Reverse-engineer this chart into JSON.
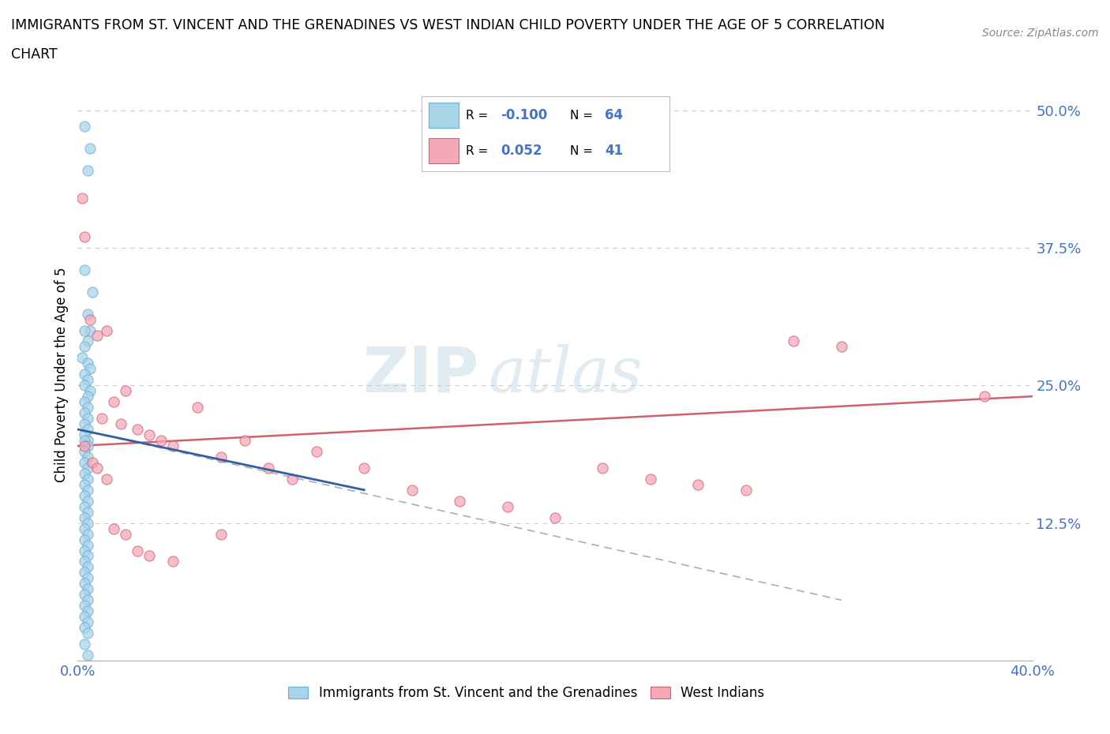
{
  "title_line1": "IMMIGRANTS FROM ST. VINCENT AND THE GRENADINES VS WEST INDIAN CHILD POVERTY UNDER THE AGE OF 5 CORRELATION",
  "title_line2": "CHART",
  "source": "Source: ZipAtlas.com",
  "ylabel": "Child Poverty Under the Age of 5",
  "xlim": [
    0.0,
    0.4
  ],
  "ylim": [
    0.0,
    0.52
  ],
  "ytick_labels": [
    "",
    "12.5%",
    "25.0%",
    "37.5%",
    "50.0%"
  ],
  "blue_R": -0.1,
  "blue_N": 64,
  "pink_R": 0.052,
  "pink_N": 41,
  "blue_color": "#a8d4e8",
  "blue_edge": "#6baed6",
  "pink_color": "#f4a8b8",
  "pink_edge": "#d06070",
  "legend1_label": "Immigrants from St. Vincent and the Grenadines",
  "legend2_label": "West Indians",
  "watermark_zip": "ZIP",
  "watermark_atlas": "atlas",
  "blue_scatter_x": [
    0.003,
    0.005,
    0.004,
    0.003,
    0.006,
    0.004,
    0.005,
    0.003,
    0.004,
    0.003,
    0.002,
    0.004,
    0.005,
    0.003,
    0.004,
    0.003,
    0.005,
    0.004,
    0.003,
    0.004,
    0.003,
    0.004,
    0.003,
    0.004,
    0.003,
    0.004,
    0.003,
    0.004,
    0.003,
    0.004,
    0.003,
    0.004,
    0.003,
    0.004,
    0.003,
    0.004,
    0.003,
    0.004,
    0.003,
    0.004,
    0.003,
    0.004,
    0.003,
    0.004,
    0.003,
    0.004,
    0.003,
    0.004,
    0.003,
    0.004,
    0.003,
    0.004,
    0.003,
    0.004,
    0.003,
    0.004,
    0.003,
    0.004,
    0.003,
    0.004,
    0.003,
    0.004,
    0.003,
    0.004
  ],
  "blue_scatter_y": [
    0.485,
    0.465,
    0.445,
    0.355,
    0.335,
    0.315,
    0.3,
    0.3,
    0.29,
    0.285,
    0.275,
    0.27,
    0.265,
    0.26,
    0.255,
    0.25,
    0.245,
    0.24,
    0.235,
    0.23,
    0.225,
    0.22,
    0.215,
    0.21,
    0.205,
    0.2,
    0.2,
    0.195,
    0.19,
    0.185,
    0.18,
    0.175,
    0.17,
    0.165,
    0.16,
    0.155,
    0.15,
    0.145,
    0.14,
    0.135,
    0.13,
    0.125,
    0.12,
    0.115,
    0.11,
    0.105,
    0.1,
    0.095,
    0.09,
    0.085,
    0.08,
    0.075,
    0.07,
    0.065,
    0.06,
    0.055,
    0.05,
    0.045,
    0.04,
    0.035,
    0.03,
    0.025,
    0.015,
    0.005
  ],
  "pink_scatter_x": [
    0.002,
    0.003,
    0.005,
    0.008,
    0.01,
    0.012,
    0.015,
    0.018,
    0.02,
    0.025,
    0.03,
    0.035,
    0.04,
    0.05,
    0.06,
    0.07,
    0.08,
    0.09,
    0.1,
    0.12,
    0.14,
    0.16,
    0.18,
    0.2,
    0.22,
    0.24,
    0.26,
    0.28,
    0.3,
    0.32,
    0.003,
    0.006,
    0.008,
    0.012,
    0.015,
    0.02,
    0.025,
    0.03,
    0.04,
    0.06,
    0.38
  ],
  "pink_scatter_y": [
    0.42,
    0.385,
    0.31,
    0.295,
    0.22,
    0.3,
    0.235,
    0.215,
    0.245,
    0.21,
    0.205,
    0.2,
    0.195,
    0.23,
    0.185,
    0.2,
    0.175,
    0.165,
    0.19,
    0.175,
    0.155,
    0.145,
    0.14,
    0.13,
    0.175,
    0.165,
    0.16,
    0.155,
    0.29,
    0.285,
    0.195,
    0.18,
    0.175,
    0.165,
    0.12,
    0.115,
    0.1,
    0.095,
    0.09,
    0.115,
    0.24
  ],
  "blue_trend_x": [
    0.0,
    0.15
  ],
  "blue_trend_y": [
    0.205,
    0.145
  ],
  "pink_trend_x": [
    0.0,
    0.4
  ],
  "pink_trend_y": [
    0.195,
    0.24
  ]
}
